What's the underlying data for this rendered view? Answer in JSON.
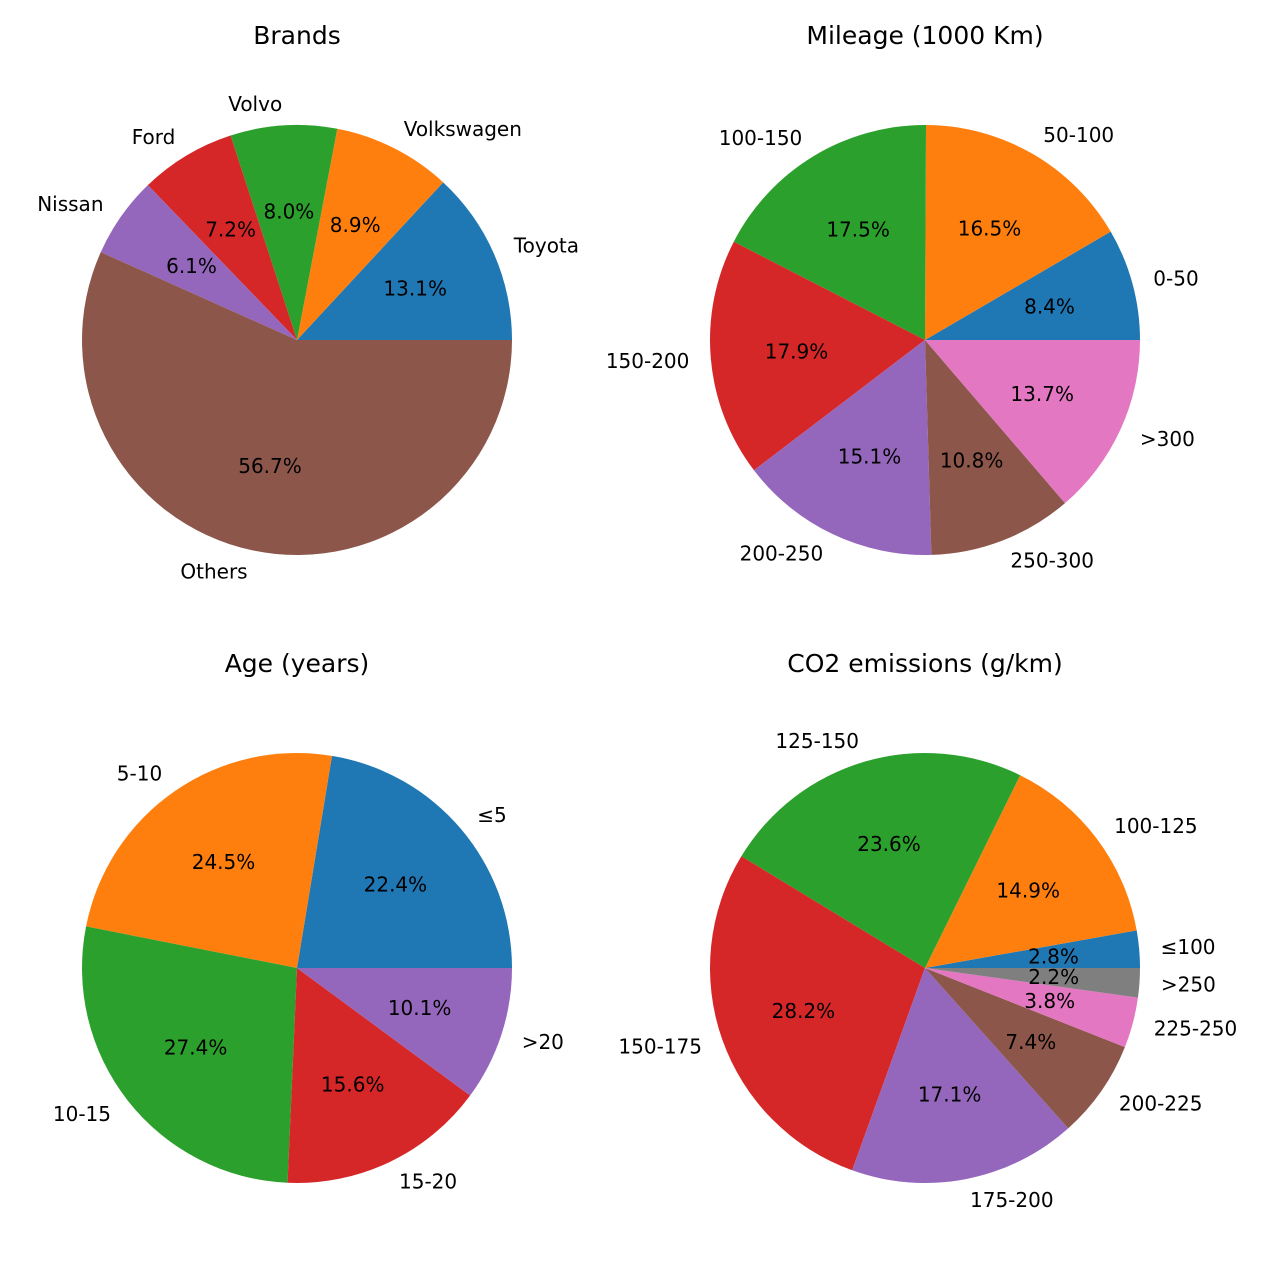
{
  "chart_data": [
    {
      "type": "pie",
      "title": "Brands",
      "labels": [
        "Toyota",
        "Volkswagen",
        "Volvo",
        "Ford",
        "Nissan",
        "Others"
      ],
      "values": [
        13.1,
        8.9,
        8.0,
        7.2,
        6.1,
        56.7
      ],
      "percent_labels": [
        "13.1%",
        "8.9%",
        "8.0%",
        "7.2%",
        "6.1%",
        "56.7%"
      ],
      "colors": [
        "#1f77b4",
        "#ff7f0e",
        "#2ca02c",
        "#d62728",
        "#9467bd",
        "#8c564b"
      ],
      "start_angle": 0,
      "direction": "counterclockwise"
    },
    {
      "type": "pie",
      "title": "Mileage (1000 Km)",
      "labels": [
        "0-50",
        "50-100",
        "100-150",
        "150-200",
        "200-250",
        "250-300",
        ">300"
      ],
      "values": [
        8.4,
        16.5,
        17.5,
        17.9,
        15.1,
        10.8,
        13.7
      ],
      "percent_labels": [
        "8.4%",
        "16.5%",
        "17.5%",
        "17.9%",
        "15.1%",
        "10.8%",
        "13.7%"
      ],
      "colors": [
        "#1f77b4",
        "#ff7f0e",
        "#2ca02c",
        "#d62728",
        "#9467bd",
        "#8c564b",
        "#e377c2"
      ],
      "start_angle": 0,
      "direction": "counterclockwise"
    },
    {
      "type": "pie",
      "title": "Age (years)",
      "labels": [
        "≤5",
        "5-10",
        "10-15",
        "15-20",
        ">20"
      ],
      "values": [
        22.4,
        24.5,
        27.4,
        15.6,
        10.1
      ],
      "percent_labels": [
        "22.4%",
        "24.5%",
        "27.4%",
        "15.6%",
        "10.1%"
      ],
      "colors": [
        "#1f77b4",
        "#ff7f0e",
        "#2ca02c",
        "#d62728",
        "#9467bd"
      ],
      "start_angle": 0,
      "direction": "counterclockwise"
    },
    {
      "type": "pie",
      "title": "CO2 emissions (g/km)",
      "labels": [
        "≤100",
        "100-125",
        "125-150",
        "150-175",
        "175-200",
        "200-225",
        "225-250",
        ">250"
      ],
      "values": [
        2.8,
        14.9,
        23.6,
        28.2,
        17.1,
        7.4,
        3.8,
        2.2
      ],
      "percent_labels": [
        "2.8%",
        "14.9%",
        "23.6%",
        "28.2%",
        "17.1%",
        "7.4%",
        "3.8%",
        "2.2%"
      ],
      "colors": [
        "#1f77b4",
        "#ff7f0e",
        "#2ca02c",
        "#d62728",
        "#9467bd",
        "#8c564b",
        "#e377c2",
        "#7f7f7f"
      ],
      "start_angle": 0,
      "direction": "counterclockwise"
    }
  ]
}
